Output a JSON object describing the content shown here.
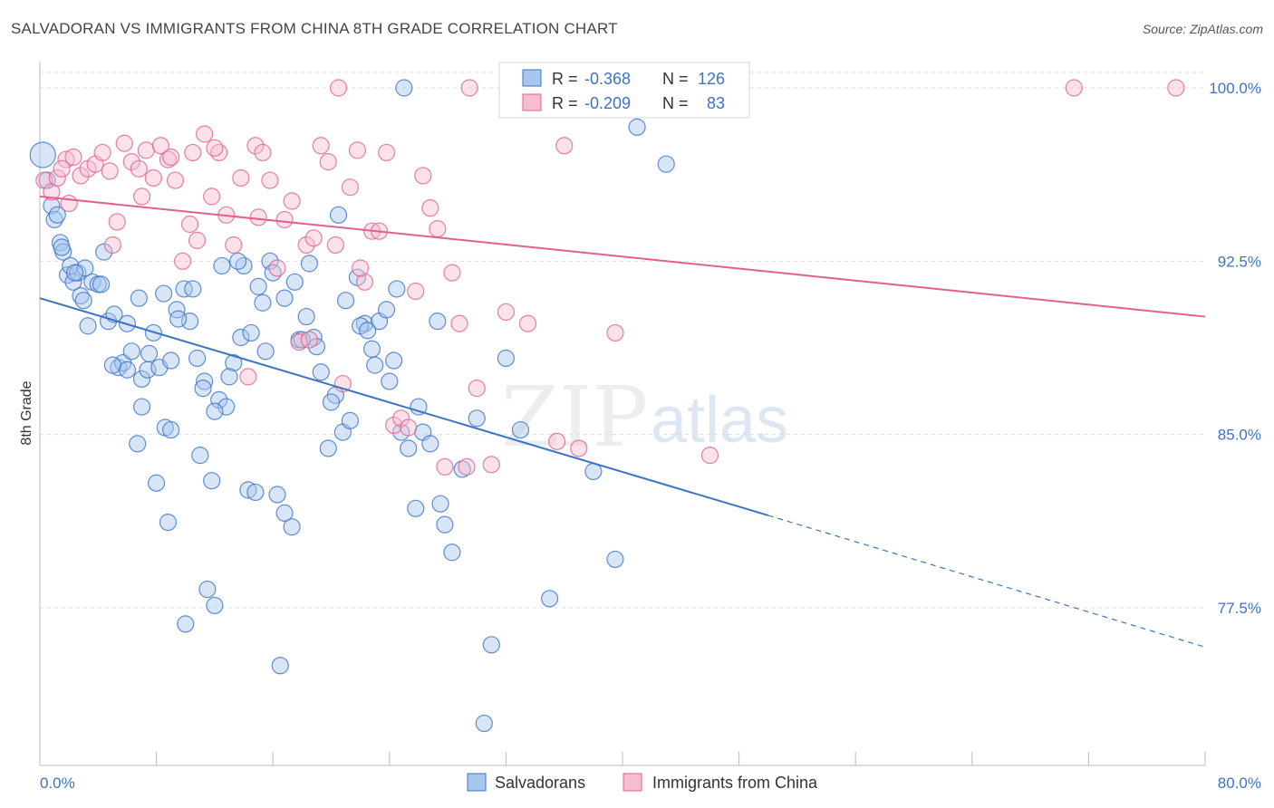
{
  "header": {
    "title": "SALVADORAN VS IMMIGRANTS FROM CHINA 8TH GRADE CORRELATION CHART",
    "source": "Source: ZipAtlas.com"
  },
  "legend_top": {
    "rows": [
      {
        "r_label": "R =",
        "r_value": "-0.368",
        "n_label": "N =",
        "n_value": "126"
      },
      {
        "r_label": "R =",
        "r_value": "-0.209",
        "n_label": "N =",
        "n_value": "83"
      }
    ]
  },
  "legend_bottom": {
    "items": [
      "Salvadorans",
      "Immigrants from China"
    ]
  },
  "watermark": {
    "zip": "ZIP",
    "atlas": "atlas"
  },
  "colors": {
    "blue": "#3a73c8",
    "blue_fill": "#a9c6ee",
    "pink": "#e0608f",
    "pink_fill": "#f6bdd0",
    "grid": "#dddddd"
  },
  "chart_data": {
    "type": "scatter",
    "title": "SALVADORAN VS IMMIGRANTS FROM CHINA 8TH GRADE CORRELATION CHART",
    "xlabel": "",
    "ylabel": "8th Grade",
    "xlim": [
      0,
      80
    ],
    "ylim": [
      71,
      101
    ],
    "x_tick_labels": [
      "0.0%",
      "80.0%"
    ],
    "y_ticks": [
      77.5,
      85.0,
      92.5,
      100.0
    ],
    "y_tick_labels": [
      "77.5%",
      "85.0%",
      "92.5%",
      "100.0%"
    ],
    "grid": true,
    "legend_position": "top-center",
    "series": [
      {
        "name": "Salvadorans",
        "color": "#3a73c8",
        "r": -0.368,
        "n": 126,
        "trend": {
          "x0": 0,
          "y0": 90.9,
          "x1": 50,
          "y1": 81.5,
          "dashed_to_x": 80,
          "dashed_to_y": 75.8
        },
        "points": [
          [
            0.2,
            97.1
          ],
          [
            0.5,
            96.0
          ],
          [
            0.8,
            94.9
          ],
          [
            1.0,
            94.3
          ],
          [
            1.2,
            94.5
          ],
          [
            1.4,
            93.3
          ],
          [
            1.6,
            92.9
          ],
          [
            1.9,
            91.9
          ],
          [
            2.1,
            92.3
          ],
          [
            2.3,
            91.6
          ],
          [
            2.6,
            92.0
          ],
          [
            2.8,
            91.0
          ],
          [
            3.0,
            90.8
          ],
          [
            3.3,
            89.7
          ],
          [
            3.6,
            91.6
          ],
          [
            4.0,
            91.5
          ],
          [
            4.4,
            92.9
          ],
          [
            4.7,
            89.9
          ],
          [
            5.1,
            90.2
          ],
          [
            5.4,
            87.9
          ],
          [
            5.7,
            88.1
          ],
          [
            6.0,
            87.8
          ],
          [
            6.3,
            88.6
          ],
          [
            6.7,
            84.6
          ],
          [
            7.0,
            87.4
          ],
          [
            7.4,
            87.8
          ],
          [
            7.8,
            89.4
          ],
          [
            8.2,
            87.9
          ],
          [
            8.6,
            85.3
          ],
          [
            9.0,
            88.2
          ],
          [
            9.4,
            90.4
          ],
          [
            9.9,
            91.3
          ],
          [
            10.3,
            89.9
          ],
          [
            10.8,
            88.3
          ],
          [
            11.3,
            87.3
          ],
          [
            11.8,
            83.0
          ],
          [
            12.3,
            86.5
          ],
          [
            12.8,
            86.2
          ],
          [
            13.3,
            88.1
          ],
          [
            13.8,
            89.2
          ],
          [
            14.3,
            82.6
          ],
          [
            14.8,
            82.5
          ],
          [
            15.3,
            90.7
          ],
          [
            15.8,
            92.5
          ],
          [
            16.3,
            82.4
          ],
          [
            16.8,
            81.6
          ],
          [
            17.3,
            81.0
          ],
          [
            17.8,
            89.1
          ],
          [
            18.3,
            90.1
          ],
          [
            18.8,
            89.2
          ],
          [
            19.3,
            87.7
          ],
          [
            19.8,
            84.4
          ],
          [
            20.3,
            86.7
          ],
          [
            20.8,
            85.1
          ],
          [
            21.3,
            85.6
          ],
          [
            21.8,
            91.8
          ],
          [
            22.3,
            89.8
          ],
          [
            22.8,
            88.7
          ],
          [
            23.3,
            89.9
          ],
          [
            23.8,
            90.4
          ],
          [
            24.3,
            88.2
          ],
          [
            24.8,
            85.1
          ],
          [
            25.3,
            84.4
          ],
          [
            25.8,
            81.8
          ],
          [
            26.3,
            85.1
          ],
          [
            26.8,
            84.6
          ],
          [
            27.3,
            89.9
          ],
          [
            27.8,
            81.1
          ],
          [
            28.3,
            79.9
          ],
          [
            29.0,
            83.5
          ],
          [
            30.0,
            85.7
          ],
          [
            31.0,
            75.9
          ],
          [
            32.0,
            88.3
          ],
          [
            33.0,
            85.2
          ],
          [
            35.0,
            77.9
          ],
          [
            38.0,
            83.4
          ],
          [
            39.5,
            79.6
          ],
          [
            43.0,
            96.7
          ],
          [
            41.0,
            98.3
          ],
          [
            25.0,
            100.0
          ],
          [
            30.5,
            72.5
          ],
          [
            16.5,
            75.0
          ],
          [
            12.0,
            77.6
          ],
          [
            10.0,
            76.8
          ],
          [
            11.5,
            78.3
          ],
          [
            8.8,
            81.2
          ],
          [
            8.0,
            82.9
          ],
          [
            11.0,
            84.1
          ],
          [
            9.0,
            85.2
          ],
          [
            7.0,
            86.2
          ],
          [
            5.0,
            88.0
          ],
          [
            4.2,
            91.5
          ],
          [
            6.8,
            90.9
          ],
          [
            8.5,
            91.1
          ],
          [
            10.5,
            91.3
          ],
          [
            12.5,
            92.3
          ],
          [
            14.0,
            92.3
          ],
          [
            15.0,
            91.4
          ],
          [
            16.0,
            92.0
          ],
          [
            17.5,
            91.6
          ],
          [
            18.5,
            92.4
          ],
          [
            20.5,
            94.5
          ],
          [
            21.0,
            90.8
          ],
          [
            22.0,
            89.7
          ],
          [
            23.0,
            88.0
          ],
          [
            24.0,
            87.3
          ],
          [
            14.5,
            89.4
          ],
          [
            13.0,
            87.5
          ],
          [
            15.5,
            88.6
          ],
          [
            12.0,
            86.0
          ],
          [
            3.1,
            92.2
          ],
          [
            1.5,
            93.1
          ],
          [
            2.4,
            92.0
          ],
          [
            6.0,
            89.8
          ],
          [
            7.5,
            88.5
          ],
          [
            9.5,
            90.0
          ],
          [
            11.2,
            87.0
          ],
          [
            13.6,
            92.5
          ],
          [
            16.8,
            90.9
          ],
          [
            18.0,
            89.1
          ],
          [
            19.0,
            88.8
          ],
          [
            20.0,
            86.4
          ],
          [
            22.5,
            89.5
          ],
          [
            24.5,
            91.3
          ],
          [
            26.0,
            86.2
          ],
          [
            27.5,
            82.0
          ]
        ]
      },
      {
        "name": "Immigrants from China",
        "color": "#e0608f",
        "r": -0.209,
        "n": 83,
        "trend": {
          "x0": 0,
          "y0": 95.3,
          "x1": 80,
          "y1": 90.1
        },
        "points": [
          [
            0.3,
            96.0
          ],
          [
            0.8,
            95.5
          ],
          [
            1.2,
            96.1
          ],
          [
            1.8,
            96.9
          ],
          [
            2.3,
            97.0
          ],
          [
            2.8,
            96.2
          ],
          [
            3.3,
            96.5
          ],
          [
            3.8,
            96.7
          ],
          [
            4.3,
            97.2
          ],
          [
            4.8,
            96.4
          ],
          [
            5.3,
            94.2
          ],
          [
            5.8,
            97.6
          ],
          [
            6.3,
            96.8
          ],
          [
            6.8,
            96.5
          ],
          [
            7.3,
            97.3
          ],
          [
            7.8,
            96.1
          ],
          [
            8.3,
            97.5
          ],
          [
            8.8,
            96.9
          ],
          [
            9.3,
            96.0
          ],
          [
            9.8,
            92.5
          ],
          [
            10.3,
            94.1
          ],
          [
            10.8,
            93.4
          ],
          [
            11.3,
            98.0
          ],
          [
            11.8,
            95.3
          ],
          [
            12.3,
            97.2
          ],
          [
            12.8,
            94.5
          ],
          [
            13.3,
            93.2
          ],
          [
            13.8,
            96.1
          ],
          [
            14.3,
            87.5
          ],
          [
            14.8,
            97.5
          ],
          [
            15.3,
            97.2
          ],
          [
            15.8,
            96.0
          ],
          [
            16.3,
            92.2
          ],
          [
            16.8,
            94.3
          ],
          [
            17.3,
            95.1
          ],
          [
            17.8,
            89.0
          ],
          [
            18.3,
            93.2
          ],
          [
            18.8,
            93.5
          ],
          [
            19.3,
            97.5
          ],
          [
            19.8,
            96.8
          ],
          [
            20.3,
            93.2
          ],
          [
            20.8,
            87.2
          ],
          [
            21.3,
            95.7
          ],
          [
            21.8,
            97.3
          ],
          [
            22.3,
            91.6
          ],
          [
            22.8,
            93.8
          ],
          [
            23.3,
            93.8
          ],
          [
            23.8,
            97.2
          ],
          [
            24.3,
            85.4
          ],
          [
            24.8,
            85.7
          ],
          [
            25.3,
            85.3
          ],
          [
            25.8,
            91.2
          ],
          [
            26.3,
            96.2
          ],
          [
            26.8,
            94.8
          ],
          [
            27.3,
            93.9
          ],
          [
            27.8,
            83.6
          ],
          [
            28.3,
            92.0
          ],
          [
            28.8,
            89.8
          ],
          [
            29.3,
            83.6
          ],
          [
            30.0,
            87.0
          ],
          [
            31.0,
            83.7
          ],
          [
            32.0,
            90.3
          ],
          [
            33.5,
            89.8
          ],
          [
            35.5,
            84.7
          ],
          [
            36.0,
            97.5
          ],
          [
            37.0,
            84.4
          ],
          [
            39.5,
            89.4
          ],
          [
            46.0,
            84.1
          ],
          [
            20.5,
            100.0
          ],
          [
            29.5,
            100.0
          ],
          [
            71.0,
            100.0
          ],
          [
            78.0,
            100.0
          ],
          [
            33.0,
            100.0
          ],
          [
            1.5,
            96.5
          ],
          [
            2.0,
            95.0
          ],
          [
            5.0,
            93.2
          ],
          [
            7.0,
            95.3
          ],
          [
            9.0,
            97.0
          ],
          [
            10.5,
            97.2
          ],
          [
            12.0,
            97.4
          ],
          [
            15.0,
            94.4
          ],
          [
            18.5,
            89.1
          ],
          [
            22.0,
            92.2
          ]
        ]
      }
    ]
  }
}
